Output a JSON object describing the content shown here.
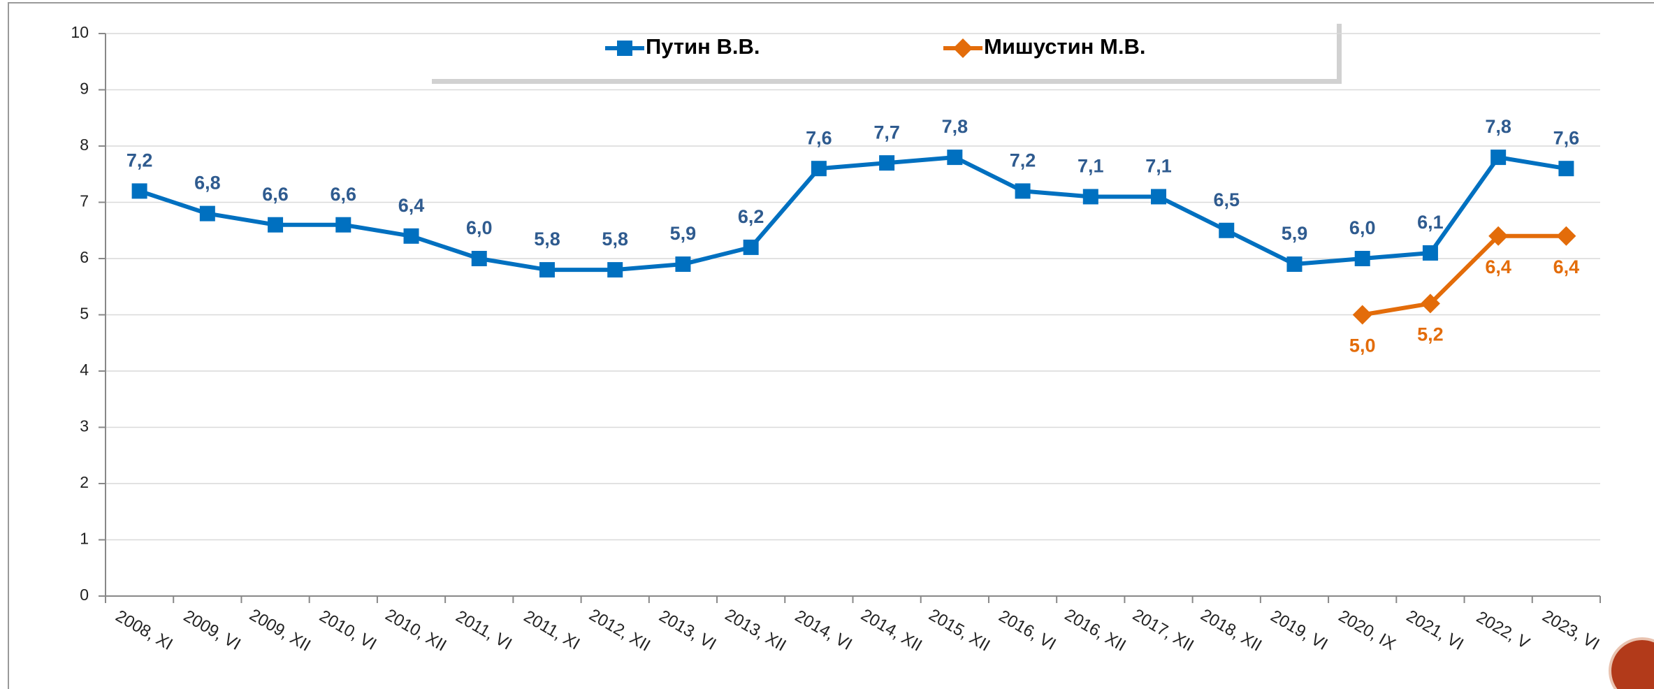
{
  "chart_data": {
    "type": "line",
    "categories": [
      "2008, XI",
      "2009, VI",
      "2009, XII",
      "2010, VI",
      "2010, XII",
      "2011, VI",
      "2011, XI",
      "2012, XII",
      "2013, VI",
      "2013, XII",
      "2014, VI",
      "2014, XII",
      "2015, XII",
      "2016, VI",
      "2016, XII",
      "2017, XII",
      "2018, XII",
      "2019, VI",
      "2020, IX",
      "2021, VI",
      "2022, V",
      "2023, VI"
    ],
    "series": [
      {
        "name": "Путин В.В.",
        "color": "#0070c0",
        "label_color": "#2f5b8f",
        "marker": "square",
        "values": [
          7.2,
          6.8,
          6.6,
          6.6,
          6.4,
          6.0,
          5.8,
          5.8,
          5.9,
          6.2,
          7.6,
          7.7,
          7.8,
          7.2,
          7.1,
          7.1,
          6.5,
          5.9,
          6.0,
          6.1,
          7.8,
          7.6
        ],
        "value_labels": [
          "7,2",
          "6,8",
          "6,6",
          "6,6",
          "6,4",
          "6,0",
          "5,8",
          "5,8",
          "5,9",
          "6,2",
          "7,6",
          "7,7",
          "7,8",
          "7,2",
          "7,1",
          "7,1",
          "6,5",
          "5,9",
          "6,0",
          "6,1",
          "7,8",
          "7,6"
        ]
      },
      {
        "name": "Мишустин М.В.",
        "color": "#e36c0a",
        "label_color": "#e36c0a",
        "marker": "diamond",
        "values": [
          null,
          null,
          null,
          null,
          null,
          null,
          null,
          null,
          null,
          null,
          null,
          null,
          null,
          null,
          null,
          null,
          null,
          null,
          5.0,
          5.2,
          6.4,
          6.4
        ],
        "value_labels": [
          null,
          null,
          null,
          null,
          null,
          null,
          null,
          null,
          null,
          null,
          null,
          null,
          null,
          null,
          null,
          null,
          null,
          null,
          "5,0",
          "5,2",
          "6,4",
          "6,4"
        ]
      }
    ],
    "ylim": [
      0,
      10
    ],
    "yticks": [
      0,
      1,
      2,
      3,
      4,
      5,
      6,
      7,
      8,
      9,
      10
    ],
    "grid": true,
    "legend": "top"
  }
}
